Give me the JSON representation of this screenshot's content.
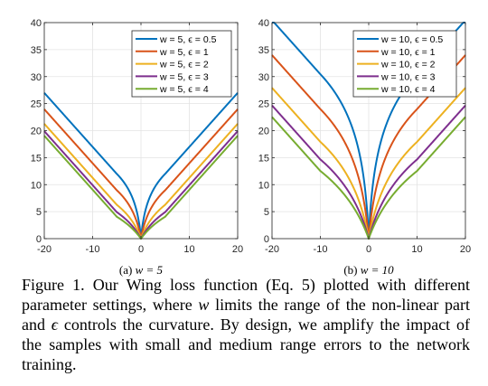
{
  "chart_data": [
    {
      "type": "line",
      "subtitle_prefix": "(a)",
      "subtitle_math": "w = 5",
      "xlim": [
        -20,
        20
      ],
      "ylim": [
        0,
        40
      ],
      "xticks": [
        -20,
        -10,
        0,
        10,
        20
      ],
      "yticks": [
        0,
        5,
        10,
        15,
        20,
        25,
        30,
        35,
        40
      ],
      "grid": true,
      "legend_position": "top-right",
      "function": "wing loss: w*ln(1+|x|/eps) for |x|<w, else |x|-C, C = w - w*ln(1+w/eps)",
      "series": [
        {
          "name": "w = 5, ϵ = 0.5",
          "w": 5,
          "eps": 0.5,
          "color": "#0072BD",
          "x": [
            -20,
            -10,
            -5,
            -2,
            -1,
            0,
            1,
            2,
            5,
            10,
            20
          ],
          "y": [
            27.0,
            17.0,
            11.99,
            8.47,
            5.49,
            0,
            5.49,
            8.47,
            11.99,
            17.0,
            27.0
          ]
        },
        {
          "name": "w = 5, ϵ = 1",
          "w": 5,
          "eps": 1,
          "color": "#D95319",
          "x": [
            -20,
            -10,
            -5,
            -2,
            -1,
            0,
            1,
            2,
            5,
            10,
            20
          ],
          "y": [
            23.96,
            13.96,
            8.96,
            5.49,
            3.47,
            0,
            3.47,
            5.49,
            8.96,
            13.96,
            23.96
          ]
        },
        {
          "name": "w = 5, ϵ = 2",
          "w": 5,
          "eps": 2,
          "color": "#EDB120",
          "x": [
            -20,
            -10,
            -5,
            -2,
            -1,
            0,
            1,
            2,
            5,
            10,
            20
          ],
          "y": [
            21.26,
            11.26,
            6.26,
            3.47,
            2.03,
            0,
            2.03,
            3.47,
            6.26,
            11.26,
            21.26
          ]
        },
        {
          "name": "w = 5, ϵ = 3",
          "w": 5,
          "eps": 3,
          "color": "#7E2F8E",
          "x": [
            -20,
            -10,
            -5,
            -2,
            -1,
            0,
            1,
            2,
            5,
            10,
            20
          ],
          "y": [
            19.9,
            9.9,
            4.9,
            2.55,
            1.44,
            0,
            1.44,
            2.55,
            4.9,
            9.9,
            19.9
          ]
        },
        {
          "name": "w = 5, ϵ = 4",
          "w": 5,
          "eps": 4,
          "color": "#77AC30",
          "x": [
            -20,
            -10,
            -5,
            -2,
            -1,
            0,
            1,
            2,
            5,
            10,
            20
          ],
          "y": [
            19.06,
            9.06,
            4.06,
            2.03,
            1.12,
            0,
            1.12,
            2.03,
            4.06,
            9.06,
            19.06
          ]
        }
      ]
    },
    {
      "type": "line",
      "subtitle_prefix": "(b)",
      "subtitle_math": "w = 10",
      "xlim": [
        -20,
        20
      ],
      "ylim": [
        0,
        40
      ],
      "xticks": [
        -20,
        -10,
        0,
        10,
        20
      ],
      "yticks": [
        0,
        5,
        10,
        15,
        20,
        25,
        30,
        35,
        40
      ],
      "grid": true,
      "legend_position": "top-right",
      "function": "wing loss: w*ln(1+|x|/eps) for |x|<w, else |x|-C, C = w - w*ln(1+w/eps)",
      "series": [
        {
          "name": "w = 10, ϵ = 0.5",
          "w": 10,
          "eps": 0.5,
          "color": "#0072BD",
          "x": [
            -20,
            -10,
            -5,
            -2,
            -1,
            0,
            1,
            2,
            5,
            10,
            20
          ],
          "y": [
            40.4,
            30.4,
            23.98,
            16.09,
            10.99,
            0,
            10.99,
            16.09,
            23.98,
            30.4,
            40.4
          ]
        },
        {
          "name": "w = 10, ϵ = 1",
          "w": 10,
          "eps": 1,
          "color": "#D95319",
          "x": [
            -20,
            -10,
            -5,
            -2,
            -1,
            0,
            1,
            2,
            5,
            10,
            20
          ],
          "y": [
            33.98,
            23.98,
            17.92,
            10.99,
            6.93,
            0,
            6.93,
            10.99,
            17.92,
            23.98,
            33.98
          ]
        },
        {
          "name": "w = 10, ϵ = 2",
          "w": 10,
          "eps": 2,
          "color": "#EDB120",
          "x": [
            -20,
            -10,
            -5,
            -2,
            -1,
            0,
            1,
            2,
            5,
            10,
            20
          ],
          "y": [
            27.92,
            17.92,
            12.53,
            6.93,
            4.05,
            0,
            4.05,
            6.93,
            12.53,
            17.92,
            27.92
          ]
        },
        {
          "name": "w = 10, ϵ = 3",
          "w": 10,
          "eps": 3,
          "color": "#7E2F8E",
          "x": [
            -20,
            -10,
            -5,
            -2,
            -1,
            0,
            1,
            2,
            5,
            10,
            20
          ],
          "y": [
            24.51,
            14.51,
            9.81,
            5.11,
            2.88,
            0,
            2.88,
            5.11,
            9.81,
            14.51,
            24.51
          ]
        },
        {
          "name": "w = 10, ϵ = 4",
          "w": 10,
          "eps": 4,
          "color": "#77AC30",
          "x": [
            -20,
            -10,
            -5,
            -2,
            -1,
            0,
            1,
            2,
            5,
            10,
            20
          ],
          "y": [
            22.53,
            12.53,
            8.11,
            4.05,
            2.23,
            0,
            2.23,
            4.05,
            8.11,
            12.53,
            22.53
          ]
        }
      ]
    }
  ],
  "caption": {
    "text_1": "Figure 1. Our Wing loss function (Eq. 5) plotted with different parameter settings, where ",
    "math_w": "w",
    "text_2": " limits the range of the non-linear part and ",
    "math_eps": "ϵ",
    "text_3": " controls the curvature. By design, we amplify the impact of the samples with small and medium range errors to the network training."
  }
}
